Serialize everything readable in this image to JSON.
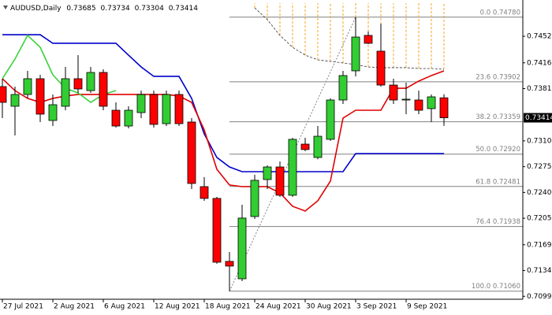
{
  "chart_data": {
    "type": "candlestick",
    "title": "AUDUSD,Daily",
    "categories": [
      "27 Jul 2021",
      null,
      null,
      null,
      "2 Aug 2021",
      null,
      null,
      null,
      "6 Aug 2021",
      null,
      null,
      null,
      "12 Aug 2021",
      null,
      null,
      null,
      "18 Aug 2021",
      null,
      null,
      null,
      "24 Aug 2021",
      null,
      null,
      null,
      "30 Aug 2021",
      null,
      null,
      null,
      "3 Sep 2021",
      null,
      null,
      null,
      "9 Sep 2021",
      null,
      null,
      null
    ],
    "ohlc": {
      "open": [
        0.73837,
        0.7357,
        0.7373,
        0.73944,
        0.73377,
        0.7357,
        0.73944,
        0.73783,
        0.74029,
        0.73516,
        0.73302,
        0.73484,
        0.7373,
        0.73334,
        0.7373,
        0.73356,
        0.72479,
        0.72319,
        0.71464,
        0.71228,
        0.72073,
        0.72575,
        0.72746,
        0.72362,
        0.73056,
        0.72875,
        0.73121,
        0.73655,
        0.74051,
        0.74532,
        0.74318,
        0.73858,
        0.73655,
        0.73655,
        0.73538,
        0.73685
      ],
      "high": [
        0.73944,
        0.73837,
        0.74051,
        0.73997,
        0.7373,
        0.74104,
        0.74264,
        0.74104,
        0.74072,
        0.73623,
        0.7357,
        0.73783,
        0.73783,
        0.73783,
        0.73783,
        0.73409,
        0.72608,
        0.7234,
        0.71592,
        0.72233,
        0.7264,
        0.72768,
        0.72821,
        0.73142,
        0.73142,
        0.73302,
        0.73677,
        0.74051,
        0.7478,
        0.74585,
        0.74692,
        0.73944,
        0.7389,
        0.73783,
        0.7373,
        0.73734
      ],
      "low": [
        0.73409,
        0.73174,
        0.73677,
        0.73356,
        0.73302,
        0.73516,
        0.73751,
        0.73751,
        0.73516,
        0.73281,
        0.7327,
        0.73409,
        0.73281,
        0.73302,
        0.73302,
        0.72447,
        0.72287,
        0.71432,
        0.7106,
        0.71196,
        0.72041,
        0.72447,
        0.7234,
        0.7234,
        0.7296,
        0.7285,
        0.731,
        0.73602,
        0.73976,
        0.74414,
        0.73837,
        0.73602,
        0.73463,
        0.73463,
        0.73356,
        0.73304
      ],
      "close": [
        0.73623,
        0.7373,
        0.73944,
        0.73463,
        0.73591,
        0.73944,
        0.73805,
        0.74029,
        0.7357,
        0.73302,
        0.73516,
        0.7373,
        0.73324,
        0.7373,
        0.73334,
        0.72522,
        0.72319,
        0.71453,
        0.714,
        0.72052,
        0.72565,
        0.72746,
        0.72362,
        0.73121,
        0.72982,
        0.73163,
        0.73655,
        0.73987,
        0.7451,
        0.74425,
        0.73858,
        0.73655,
        0.73666,
        0.73516,
        0.73698,
        0.73414
      ]
    },
    "up_color": "#32cd32",
    "down_color": "#ff0000",
    "indicators": [
      {
        "color": "#0000cc",
        "style": "solid",
        "values": [
          0.74542,
          0.74542,
          0.74542,
          0.74542,
          0.74425,
          0.74425,
          0.74425,
          0.74425,
          0.74425,
          0.74425,
          0.74264,
          0.74104,
          0.73976,
          0.73976,
          0.73976,
          0.73677,
          0.73195,
          0.72875,
          0.72746,
          0.72682,
          0.72682,
          0.72682,
          0.72682,
          0.72682,
          0.72682,
          0.72682,
          0.72682,
          0.72682,
          0.72928,
          0.72928,
          0.72928,
          0.72928,
          0.72928,
          0.72928,
          0.72928,
          0.72928
        ]
      },
      {
        "color": "#e00000",
        "style": "solid",
        "values": [
          0.73944,
          0.73783,
          0.73677,
          0.73623,
          0.73677,
          0.73709,
          0.7373,
          0.7373,
          0.7373,
          0.7373,
          0.7373,
          0.7373,
          0.7373,
          0.7373,
          0.73709,
          0.73623,
          0.73249,
          0.72714,
          0.72501,
          0.72479,
          0.72479,
          0.72479,
          0.72394,
          0.72212,
          0.72148,
          0.72287,
          0.72554,
          0.73409,
          0.73516,
          0.73516,
          0.73516,
          0.73815,
          0.73815,
          0.73912,
          0.73987,
          0.74051
        ]
      },
      {
        "color": "#3cd23c",
        "style": "solid",
        "values": [
          0.73944,
          0.74211,
          0.74532,
          0.74371,
          0.73997,
          0.73815,
          0.73751,
          0.73623,
          0.7373,
          0.73783,
          null,
          null,
          null,
          null,
          null,
          null,
          null,
          null,
          null,
          null,
          null,
          null,
          null,
          null,
          null,
          null,
          null,
          null,
          null,
          null,
          null,
          null,
          null,
          null,
          null,
          null
        ]
      },
      {
        "color": "#333333",
        "style": "dashed",
        "hatch_color": "#f5a623",
        "values": [
          null,
          null,
          null,
          null,
          null,
          null,
          null,
          null,
          null,
          null,
          null,
          null,
          null,
          null,
          null,
          null,
          null,
          null,
          null,
          null,
          0.74906,
          0.74746,
          0.74532,
          0.74371,
          0.74264,
          0.742,
          0.74179,
          0.74158,
          0.74136,
          0.74104,
          0.74094,
          0.74094,
          0.74094,
          0.74083,
          0.74083,
          0.74072
        ]
      }
    ],
    "fib_levels": [
      {
        "value": 0.7478,
        "label": "0.0  0.74780"
      },
      {
        "value": 0.73902,
        "label": "23.6  0.73902"
      },
      {
        "value": 0.73359,
        "label": "38.2  0.73359"
      },
      {
        "value": 0.7292,
        "label": "50.0  0.72920"
      },
      {
        "value": 0.72481,
        "label": "61.8  0.72481"
      },
      {
        "value": 0.71938,
        "label": "76.4  0.71938"
      },
      {
        "value": 0.7106,
        "label": "100.0  0.71060"
      }
    ],
    "fib_color": "#808080",
    "ylim": [
      0.7095,
      0.7497
    ],
    "yticks": [
      {
        "value": 0.7099,
        "label": "0.70990"
      },
      {
        "value": 0.7134,
        "label": "0.71340"
      },
      {
        "value": 0.7169,
        "label": "0.71690"
      },
      {
        "value": 0.7205,
        "label": "0.72050"
      },
      {
        "value": 0.724,
        "label": "0.72400"
      },
      {
        "value": 0.7275,
        "label": "0.72750"
      },
      {
        "value": 0.731,
        "label": "0.73100"
      },
      {
        "value": 0.7381,
        "label": "0.73810"
      },
      {
        "value": 0.7416,
        "label": "0.74160"
      },
      {
        "value": 0.7452,
        "label": "0.74520"
      }
    ],
    "grid": false
  }
}
